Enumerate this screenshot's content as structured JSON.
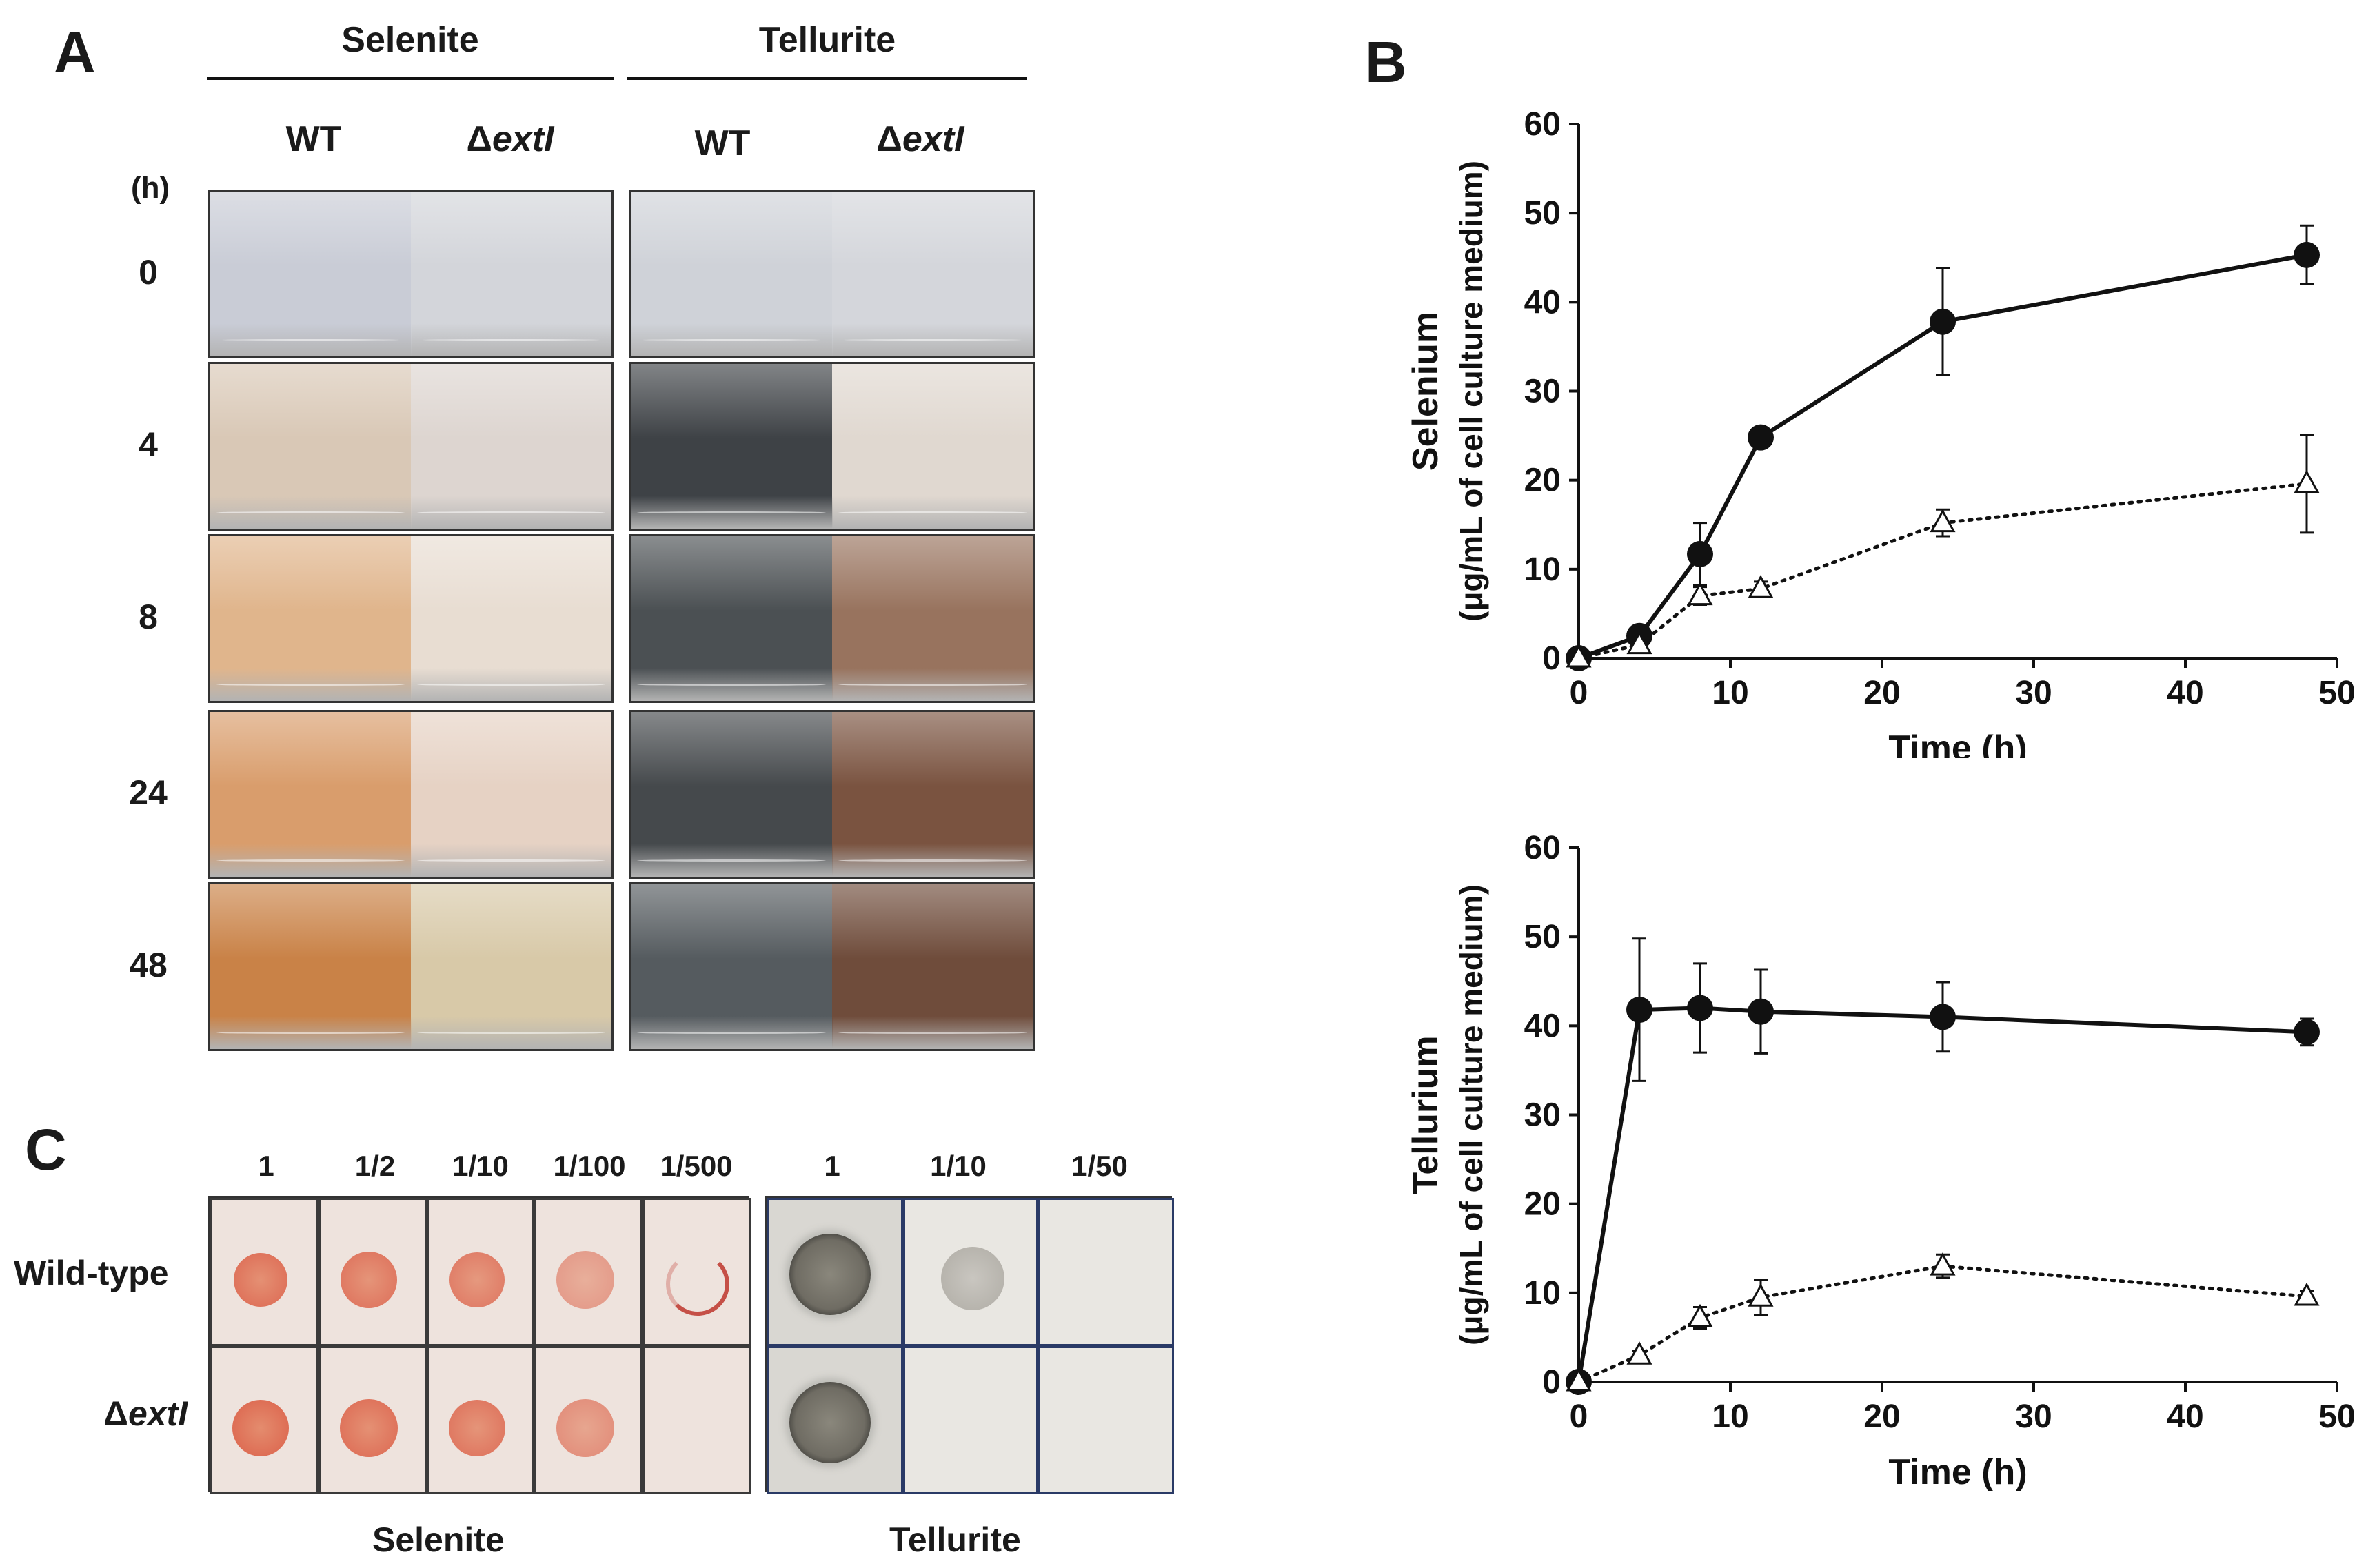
{
  "panel_a": {
    "label": "A",
    "headers": {
      "selenite": "Selenite",
      "tellurite": "Tellurite"
    },
    "strains": {
      "wt": "WT",
      "mutant_prefix": "Δ",
      "mutant_gene": "extI"
    },
    "hour_unit": "(h)",
    "timepoints": [
      "0",
      "4",
      "8",
      "24",
      "48"
    ],
    "jar_colors": {
      "selenite_wt": [
        "#c9ccd6",
        "#d9c8b6",
        "#e0b58c",
        "#d99d6c",
        "#c98247"
      ],
      "selenite_mut": [
        "#d3d5da",
        "#ddd5d0",
        "#e8ddd2",
        "#e6d2c4",
        "#d8c9a8"
      ],
      "tellurite_wt": [
        "#cfd2d8",
        "#3e4246",
        "#4b5053",
        "#45494c",
        "#555b5f"
      ],
      "tellurite_mut": [
        "#d4d6db",
        "#e0d8d0",
        "#98735e",
        "#7a5340",
        "#6f4c3b"
      ]
    }
  },
  "panel_b": {
    "label": "B"
  },
  "panel_c": {
    "label": "C",
    "selenite_dilutions": [
      "1",
      "1/2",
      "1/10",
      "1/100",
      "1/500"
    ],
    "tellurite_dilutions": [
      "1",
      "1/10",
      "1/50"
    ],
    "rows": {
      "wild_type": "Wild-type",
      "mutant_prefix": "Δ",
      "mutant_gene": "extI"
    },
    "footers": {
      "selenite": "Selenite",
      "tellurite": "Tellurite"
    }
  },
  "chart_data": [
    {
      "type": "line",
      "ylabel_main": "Selenium",
      "ylabel_unit": "(μg/mL of cell culture medium)",
      "xlabel": "Time (h)",
      "xlim": [
        0,
        50
      ],
      "ylim": [
        0,
        60
      ],
      "xticks": [
        "0",
        "10",
        "20",
        "30",
        "40",
        "50"
      ],
      "yticks": [
        "0",
        "10",
        "20",
        "30",
        "40",
        "50",
        "60"
      ],
      "series": [
        {
          "name": "WT",
          "marker": "filled-circle",
          "linestyle": "solid",
          "x": [
            0,
            4,
            8,
            12,
            24,
            48
          ],
          "y": [
            0,
            2.5,
            11.7,
            24.8,
            37.8,
            45.3
          ],
          "err": [
            0,
            0.6,
            3.5,
            0.8,
            6.0,
            3.3
          ]
        },
        {
          "name": "ΔextI",
          "marker": "open-triangle",
          "linestyle": "dotted",
          "x": [
            0,
            4,
            8,
            12,
            24,
            48
          ],
          "y": [
            0,
            1.5,
            7.0,
            7.8,
            15.2,
            19.6
          ],
          "err": [
            0,
            0.5,
            1.0,
            0.8,
            1.5,
            5.5
          ]
        }
      ]
    },
    {
      "type": "line",
      "ylabel_main": "Tellurium",
      "ylabel_unit": "(μg/mL of cell culture medium)",
      "xlabel": "Time (h)",
      "xlim": [
        0,
        50
      ],
      "ylim": [
        0,
        60
      ],
      "xticks": [
        "0",
        "10",
        "20",
        "30",
        "40",
        "50"
      ],
      "yticks": [
        "0",
        "10",
        "20",
        "30",
        "40",
        "50",
        "60"
      ],
      "series": [
        {
          "name": "WT",
          "marker": "filled-circle",
          "linestyle": "solid",
          "x": [
            0,
            4,
            8,
            12,
            24,
            48
          ],
          "y": [
            0,
            41.8,
            42.0,
            41.6,
            41.0,
            39.3
          ],
          "err": [
            0,
            8.0,
            5.0,
            4.7,
            3.9,
            1.5
          ]
        },
        {
          "name": "ΔextI",
          "marker": "open-triangle",
          "linestyle": "dotted",
          "x": [
            0,
            4,
            8,
            12,
            24,
            48
          ],
          "y": [
            0,
            3.0,
            7.2,
            9.5,
            13.0,
            9.6
          ],
          "err": [
            0,
            0.5,
            1.2,
            2.0,
            1.3,
            0.6
          ]
        }
      ]
    }
  ]
}
